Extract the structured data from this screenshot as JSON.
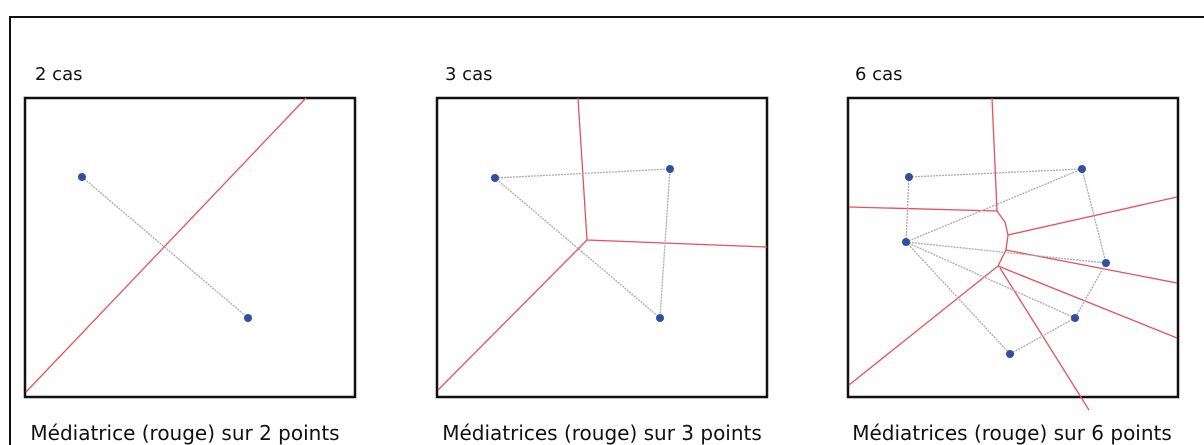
{
  "panels": [
    {
      "label": "2 cas",
      "caption": "Médiatrice (rouge) sur 2 points"
    },
    {
      "label": "3 cas",
      "caption": "Médiatrices (rouge) sur 3 points"
    },
    {
      "label": "6 cas",
      "caption": "Médiatrices (rouge) sur 6 points"
    }
  ]
}
